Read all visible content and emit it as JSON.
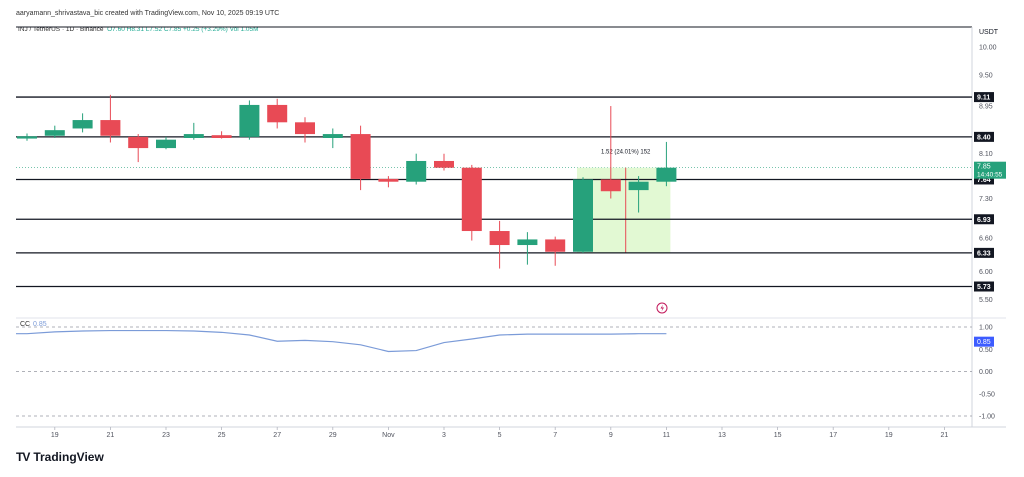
{
  "header": {
    "created_text": "aaryamann_shrivastava_bic created with TradingView.com, Nov 10, 2025 09:19 UTC"
  },
  "symbol_line": {
    "name": "INJ / TetherUS · 1D · Binance",
    "ohlc": "O7.60 H8.31 L7.52 C7.85 +0.25 (+3.29%) Vol 1.05M"
  },
  "indicator": {
    "name": "CC",
    "value": "0.85"
  },
  "currency": "USDT",
  "measurement_label": "1.52 (24.01%) 152",
  "price_tag": {
    "value": "7.85",
    "countdown": "14:40:55"
  },
  "branding": {
    "name": "TradingView",
    "logo": "TV"
  },
  "colors": {
    "up": "#26a17b",
    "down": "#e84a55",
    "cc_line": "#7b9bd8",
    "measure_fill": "#d8f7c4",
    "level_line": "#131722"
  },
  "chart_data": {
    "type": "candlestick",
    "x_tick_labels": [
      "19",
      "21",
      "23",
      "25",
      "27",
      "29",
      "Nov",
      "3",
      "5",
      "7",
      "9",
      "11",
      "13",
      "15",
      "17",
      "19",
      "21"
    ],
    "y_tick_labels": [
      "10.00",
      "9.50",
      "8.95",
      "8.10",
      "7.30",
      "6.60",
      "6.00",
      "5.50"
    ],
    "ylim": [
      5.4,
      10.2
    ],
    "horizontal_levels": [
      "9.11",
      "8.40",
      "7.64",
      "6.93",
      "6.33",
      "5.73"
    ],
    "candles": [
      {
        "o": 8.37,
        "h": 8.46,
        "l": 8.33,
        "c": 8.41
      },
      {
        "o": 8.42,
        "h": 8.6,
        "l": 8.38,
        "c": 8.52
      },
      {
        "o": 8.55,
        "h": 8.82,
        "l": 8.48,
        "c": 8.7
      },
      {
        "o": 8.7,
        "h": 9.15,
        "l": 8.3,
        "c": 8.42
      },
      {
        "o": 8.4,
        "h": 8.45,
        "l": 7.95,
        "c": 8.2
      },
      {
        "o": 8.2,
        "h": 8.4,
        "l": 8.18,
        "c": 8.35
      },
      {
        "o": 8.38,
        "h": 8.65,
        "l": 8.35,
        "c": 8.45
      },
      {
        "o": 8.43,
        "h": 8.5,
        "l": 8.37,
        "c": 8.38
      },
      {
        "o": 8.4,
        "h": 9.05,
        "l": 8.35,
        "c": 8.97
      },
      {
        "o": 8.97,
        "h": 9.08,
        "l": 8.55,
        "c": 8.66
      },
      {
        "o": 8.66,
        "h": 8.75,
        "l": 8.3,
        "c": 8.45
      },
      {
        "o": 8.38,
        "h": 8.55,
        "l": 8.2,
        "c": 8.45
      },
      {
        "o": 8.45,
        "h": 8.6,
        "l": 7.45,
        "c": 7.65
      },
      {
        "o": 7.65,
        "h": 7.7,
        "l": 7.5,
        "c": 7.6
      },
      {
        "o": 7.6,
        "h": 8.1,
        "l": 7.55,
        "c": 7.97
      },
      {
        "o": 7.97,
        "h": 8.1,
        "l": 7.8,
        "c": 7.85
      },
      {
        "o": 7.85,
        "h": 7.9,
        "l": 6.55,
        "c": 6.72
      },
      {
        "o": 6.72,
        "h": 6.9,
        "l": 6.05,
        "c": 6.47
      },
      {
        "o": 6.47,
        "h": 6.7,
        "l": 6.12,
        "c": 6.57
      },
      {
        "o": 6.57,
        "h": 6.62,
        "l": 6.1,
        "c": 6.35
      },
      {
        "o": 6.35,
        "h": 7.68,
        "l": 6.33,
        "c": 7.64
      },
      {
        "o": 7.64,
        "h": 8.95,
        "l": 7.3,
        "c": 7.43
      },
      {
        "o": 7.45,
        "h": 7.7,
        "l": 7.05,
        "c": 7.6
      },
      {
        "o": 7.6,
        "h": 8.31,
        "l": 7.52,
        "c": 7.85
      }
    ],
    "cc_values": [
      0.85,
      0.89,
      0.91,
      0.92,
      0.92,
      0.92,
      0.91,
      0.88,
      0.82,
      0.68,
      0.7,
      0.67,
      0.6,
      0.45,
      0.47,
      0.65,
      0.73,
      0.82,
      0.84,
      0.84,
      0.84,
      0.84,
      0.85,
      0.85
    ],
    "cc_y_tick_labels": [
      "1.00",
      "0.50",
      "0.00",
      "-0.50",
      "-1.00"
    ],
    "cc_ylim": [
      -1.0,
      1.0
    ]
  }
}
